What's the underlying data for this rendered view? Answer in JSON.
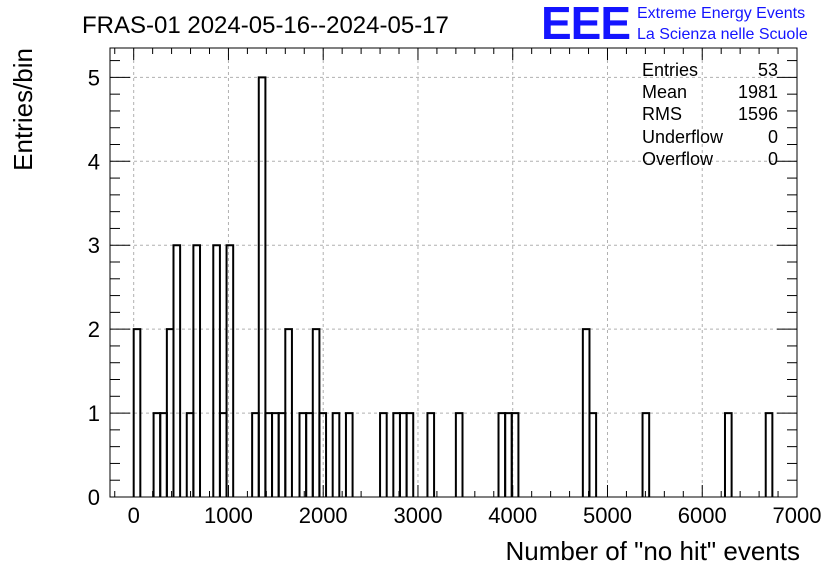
{
  "chart_data": {
    "type": "histogram",
    "title": "FRAS-01 2024-05-16--2024-05-17",
    "xlabel": "Number of \"no hit\" events",
    "ylabel": "Entries/bin",
    "xlim": [
      -250,
      7000
    ],
    "ylim": [
      0,
      5.35
    ],
    "bin_width": 70,
    "x_ticks": [
      0,
      1000,
      2000,
      3000,
      4000,
      5000,
      6000,
      7000
    ],
    "y_ticks": [
      0,
      1,
      2,
      3,
      4,
      5
    ],
    "bins": [
      {
        "x0": 0,
        "x1": 70,
        "count": 2
      },
      {
        "x0": 210,
        "x1": 280,
        "count": 1
      },
      {
        "x0": 280,
        "x1": 350,
        "count": 1
      },
      {
        "x0": 350,
        "x1": 420,
        "count": 2
      },
      {
        "x0": 420,
        "x1": 490,
        "count": 3
      },
      {
        "x0": 560,
        "x1": 630,
        "count": 1
      },
      {
        "x0": 630,
        "x1": 700,
        "count": 3
      },
      {
        "x0": 840,
        "x1": 910,
        "count": 3
      },
      {
        "x0": 910,
        "x1": 980,
        "count": 1
      },
      {
        "x0": 980,
        "x1": 1050,
        "count": 3
      },
      {
        "x0": 1250,
        "x1": 1320,
        "count": 1
      },
      {
        "x0": 1320,
        "x1": 1390,
        "count": 5
      },
      {
        "x0": 1390,
        "x1": 1460,
        "count": 1
      },
      {
        "x0": 1460,
        "x1": 1530,
        "count": 1
      },
      {
        "x0": 1530,
        "x1": 1600,
        "count": 1
      },
      {
        "x0": 1600,
        "x1": 1670,
        "count": 2
      },
      {
        "x0": 1750,
        "x1": 1820,
        "count": 1
      },
      {
        "x0": 1820,
        "x1": 1890,
        "count": 1
      },
      {
        "x0": 1890,
        "x1": 1960,
        "count": 2
      },
      {
        "x0": 1960,
        "x1": 2030,
        "count": 1
      },
      {
        "x0": 2100,
        "x1": 2170,
        "count": 1
      },
      {
        "x0": 2240,
        "x1": 2310,
        "count": 1
      },
      {
        "x0": 2600,
        "x1": 2670,
        "count": 1
      },
      {
        "x0": 2740,
        "x1": 2810,
        "count": 1
      },
      {
        "x0": 2810,
        "x1": 2880,
        "count": 1
      },
      {
        "x0": 2880,
        "x1": 2950,
        "count": 1
      },
      {
        "x0": 3100,
        "x1": 3170,
        "count": 1
      },
      {
        "x0": 3400,
        "x1": 3470,
        "count": 1
      },
      {
        "x0": 3850,
        "x1": 3920,
        "count": 1
      },
      {
        "x0": 3920,
        "x1": 3990,
        "count": 1
      },
      {
        "x0": 3990,
        "x1": 4060,
        "count": 1
      },
      {
        "x0": 4740,
        "x1": 4810,
        "count": 2
      },
      {
        "x0": 4810,
        "x1": 4880,
        "count": 1
      },
      {
        "x0": 5370,
        "x1": 5440,
        "count": 1
      },
      {
        "x0": 6240,
        "x1": 6310,
        "count": 1
      },
      {
        "x0": 6670,
        "x1": 6740,
        "count": 1
      }
    ],
    "grid": true,
    "stats": {
      "entries_label": "Entries",
      "entries": "53",
      "mean_label": "Mean",
      "mean": "1981",
      "rms_label": "RMS",
      "rms": "1596",
      "underflow_label": "Underflow",
      "underflow": "0",
      "overflow_label": "Overflow",
      "overflow": "0"
    }
  },
  "logo": {
    "mark": "EEE",
    "line1": "Extreme Energy Events",
    "line2": "La Scienza nelle Scuole",
    "color": "#1414ff"
  }
}
